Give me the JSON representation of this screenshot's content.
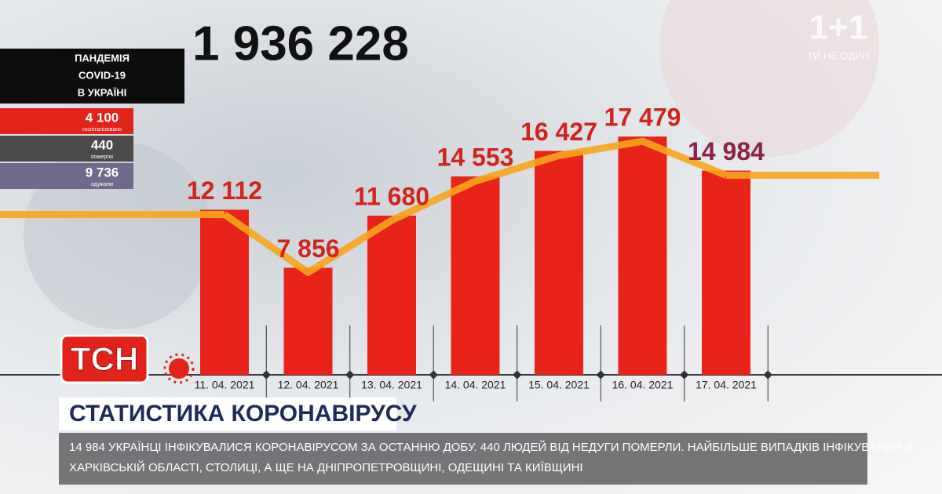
{
  "chart_data": {
    "type": "bar",
    "title": "1 936 228",
    "categories": [
      "11. 04. 2021",
      "12. 04. 2021",
      "13. 04. 2021",
      "14. 04. 2021",
      "15. 04. 2021",
      "16. 04. 2021",
      "17. 04. 2021"
    ],
    "values": [
      12112,
      7856,
      11680,
      14553,
      16427,
      17479,
      14984
    ],
    "value_labels": [
      "12 112",
      "7 856",
      "11 680",
      "14 553",
      "16 427",
      "17 479",
      "14 984"
    ],
    "color": "#e8241a",
    "line_color": "#f7a51c",
    "label_color": "#d0241c",
    "highlight_label_color": "#8e2148",
    "ylim": [
      0,
      27500
    ]
  },
  "panel": {
    "title": [
      "ПАНДЕМІЯ",
      "COVID-19",
      "В УКРАЇНІ"
    ],
    "stats": [
      {
        "value": "4 100",
        "label": "госпіталізовано"
      },
      {
        "value": "440",
        "label": "померли"
      },
      {
        "value": "9 736",
        "label": "одужали"
      }
    ]
  },
  "logo": {
    "channel": "1+1",
    "slogan": "ТИ НЕ ОДИН",
    "show": "ТСН"
  },
  "headline": "СТАТИСТИКА КОРОНАВІРУСУ",
  "ticker": [
    "14 984 УКРАЇНЦІ ІНФІКУВАЛИСЯ КОРОНАВІРУСОМ ЗА ОСТАННЮ ДОБУ. 440 ЛЮДЕЙ ВІД НЕДУГИ ПОМЕРЛИ. НАЙБІЛЬШЕ ВИПАДКІВ ІНФІКУВАННЯ В",
    "ХАРКІВСЬКІЙ ОБЛАСТІ, СТОЛИЦІ, А ЩЕ НА ДНІПРОПЕТРОВЩИНІ, ОДЕЩИНІ ТА КИЇВЩИНІ"
  ]
}
